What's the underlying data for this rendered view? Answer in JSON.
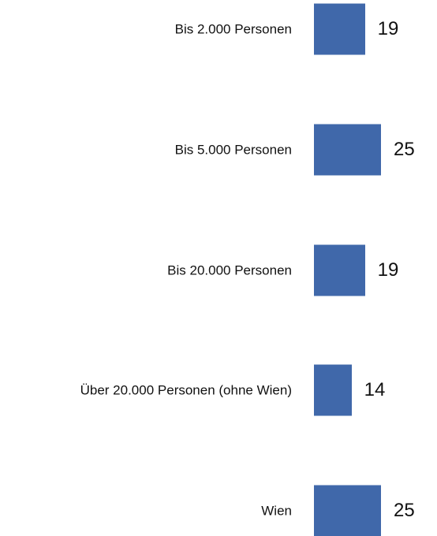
{
  "chart_data": {
    "type": "bar",
    "orientation": "horizontal",
    "categories": [
      "Bis 2.000 Personen",
      "Bis 5.000 Personen",
      "Bis 20.000 Personen",
      "Über 20.000 Personen (ohne Wien)",
      "Wien"
    ],
    "values": [
      19,
      25,
      19,
      14,
      25
    ],
    "color": "#4068aa"
  }
}
